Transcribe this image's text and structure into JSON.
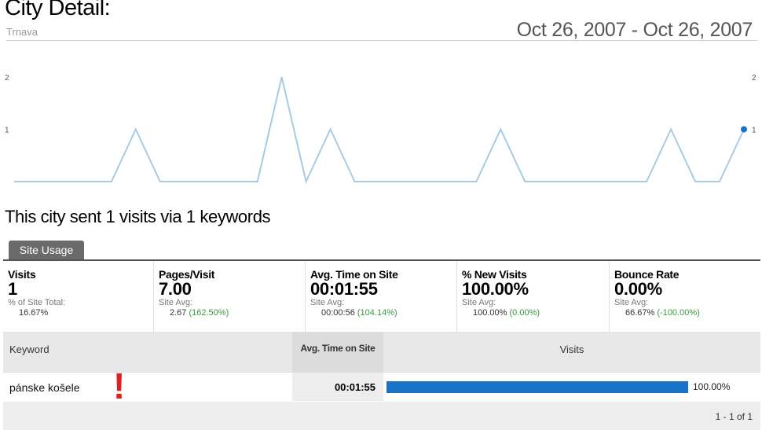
{
  "header": {
    "title": "City Detail:",
    "subtitle": "Trnava",
    "date_range": "Oct 26, 2007 - Oct 26, 2007"
  },
  "chart_data": {
    "type": "line",
    "series": [
      {
        "values": [
          0,
          0,
          0,
          0,
          0,
          1,
          0,
          0,
          0,
          0,
          0,
          2,
          0,
          1,
          0,
          0,
          0,
          0,
          0,
          0,
          1,
          0,
          0,
          0,
          0,
          0,
          0,
          1,
          0,
          0,
          1
        ]
      }
    ],
    "ylim": [
      0,
      2
    ],
    "y_ticks_left": [
      "2",
      "1"
    ],
    "y_ticks_right": [
      "2",
      "1"
    ],
    "line_color": "#a7cbe3",
    "point_color": "#1b73c7"
  },
  "summary": {
    "heading": "This city sent 1 visits via 1 keywords"
  },
  "tabs": [
    {
      "label": "Site Usage"
    }
  ],
  "metrics": [
    {
      "label": "Visits",
      "value": "1",
      "sub": "% of Site Total:",
      "sub2": "16.67%",
      "pct": ""
    },
    {
      "label": "Pages/Visit",
      "value": "7.00",
      "sub": "Site Avg:",
      "sub2": "2.67",
      "pct": "(162.50%)"
    },
    {
      "label": "Avg. Time on Site",
      "value": "00:01:55",
      "sub": "Site Avg:",
      "sub2": "00:00:56",
      "pct": "(104.14%)"
    },
    {
      "label": "% New Visits",
      "value": "100.00%",
      "sub": "Site Avg:",
      "sub2": "100.00%",
      "pct": "(0.00%)"
    },
    {
      "label": "Bounce Rate",
      "value": "0.00%",
      "sub": "Site Avg:",
      "sub2": "66.67%",
      "pct": "(-100.00%)"
    }
  ],
  "table": {
    "columns": {
      "keyword": "Keyword",
      "avg_time": "Avg. Time on Site",
      "visits": "Visits"
    },
    "rows": [
      {
        "keyword": "pánske košele",
        "flag": "!",
        "avg_time": "00:01:55",
        "visits_pct": "100.00%",
        "visits_fraction": 1.0
      }
    ],
    "pager": "1 - 1 of 1"
  }
}
